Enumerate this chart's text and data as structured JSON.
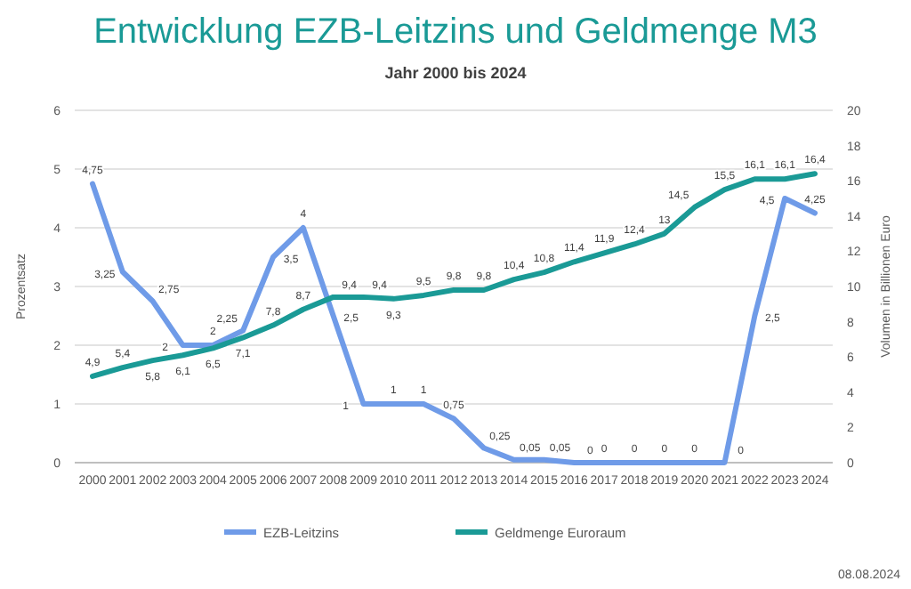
{
  "chart_data": {
    "type": "line",
    "title": "Entwicklung EZB-Leitzins und Geldmenge M3",
    "subtitle": "Jahr 2000 bis 2024",
    "ylabel": "Prozentsatz",
    "y2label": "Volumen in Billionen Euro",
    "categories": [
      "2000",
      "2001",
      "2002",
      "2003",
      "2004",
      "2005",
      "2006",
      "2007",
      "2008",
      "2009",
      "2010",
      "2011",
      "2012",
      "2013",
      "2014",
      "2015",
      "2016",
      "2017",
      "2018",
      "2019",
      "2020",
      "2021",
      "2022",
      "2023",
      "2024"
    ],
    "ylim": [
      0,
      6
    ],
    "yticks": [
      0,
      1,
      2,
      3,
      4,
      5,
      6
    ],
    "y2lim": [
      0,
      20
    ],
    "y2ticks": [
      0,
      2,
      4,
      6,
      8,
      10,
      12,
      14,
      16,
      18,
      20
    ],
    "grid": "y",
    "legend": "bottom",
    "marker": "none",
    "line_style": "solid",
    "series": [
      {
        "name": "EZB-Leitzins",
        "color": "#6f9be8",
        "values": [
          4.75,
          3.25,
          2.75,
          2,
          2,
          2.25,
          3.5,
          4,
          2.5,
          1,
          1,
          1,
          0.75,
          0.25,
          0.05,
          0.05,
          0,
          0,
          0,
          0,
          0,
          0,
          2.5,
          4.5,
          4.25
        ],
        "value_labels": [
          "4,75",
          "3,25",
          "2,75",
          "2",
          "2",
          "2,25",
          "3,5",
          "4",
          "2,5",
          "1",
          "1",
          "1",
          "0,75",
          "0,25",
          "0,05",
          "0,05",
          "0",
          "0",
          "0",
          "0",
          "0",
          "0",
          "2,5",
          "4,5",
          "4,25"
        ]
      },
      {
        "name": "Geldmenge Euroraum",
        "color": "#1a9a96",
        "axis": "y2",
        "values": [
          4.9,
          5.4,
          5.8,
          6.1,
          6.5,
          7.1,
          7.8,
          8.7,
          9.4,
          9.4,
          9.3,
          9.5,
          9.8,
          9.8,
          10.4,
          10.8,
          11.4,
          11.9,
          12.4,
          13,
          14.5,
          15.5,
          16.1,
          16.1,
          16.4
        ],
        "value_labels": [
          "4,9",
          "5,4",
          "5,8",
          "6,1",
          "6,5",
          "7,1",
          "7,8",
          "8,7",
          "9,4",
          "9,4",
          "9,3",
          "9,5",
          "9,8",
          "9,8",
          "10,4",
          "10,8",
          "11,4",
          "11,9",
          "12,4",
          "13",
          "14,5",
          "15,5",
          "16,1",
          "16,1",
          "16,4"
        ]
      }
    ],
    "annotations": [
      "08.08.2024"
    ]
  }
}
